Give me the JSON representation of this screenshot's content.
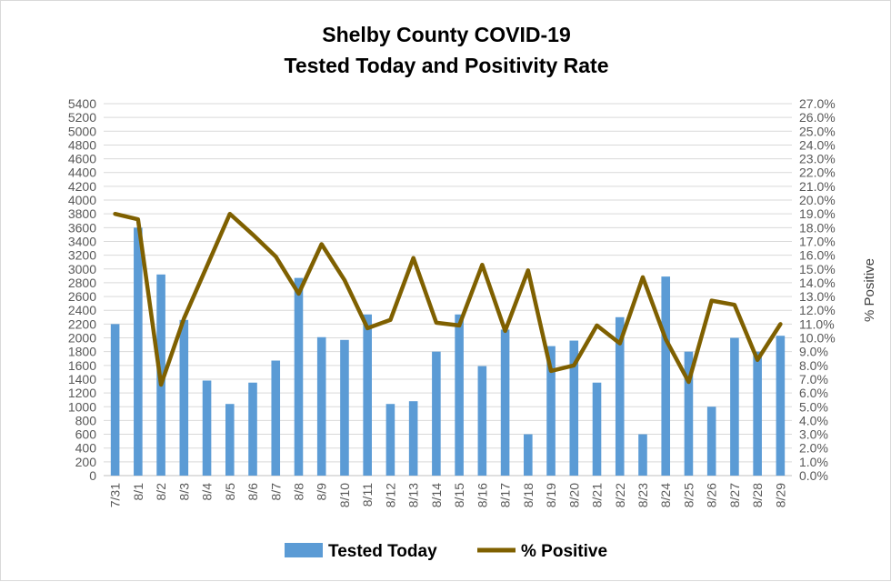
{
  "chart_data": {
    "type": "bar+line",
    "title": "Shelby County COVID-19",
    "subtitle": "Tested Today and Positivity Rate",
    "xlabel": "",
    "ylabel": "",
    "y2label": "% Positive",
    "categories": [
      "7/31",
      "8/1",
      "8/2",
      "8/3",
      "8/4",
      "8/5",
      "8/6",
      "8/7",
      "8/8",
      "8/9",
      "8/10",
      "8/11",
      "8/12",
      "8/13",
      "8/14",
      "8/15",
      "8/16",
      "8/17",
      "8/18",
      "8/19",
      "8/20",
      "8/21",
      "8/22",
      "8/23",
      "8/24",
      "8/25",
      "8/26",
      "8/27",
      "8/28",
      "8/29"
    ],
    "ylim": [
      0,
      5400
    ],
    "y_tick_step": 200,
    "y2lim": [
      0,
      27.0
    ],
    "y2_tick_step": 1.0,
    "grid": true,
    "legend_position": "bottom",
    "series": [
      {
        "name": "Tested Today",
        "kind": "bar",
        "color": "#5b9bd5",
        "values": [
          2200,
          3600,
          2920,
          2260,
          1380,
          1040,
          1350,
          1670,
          2870,
          2010,
          1970,
          2340,
          1040,
          1080,
          1800,
          2340,
          1590,
          2120,
          600,
          1880,
          1960,
          1350,
          2300,
          600,
          2890,
          1800,
          1000,
          2000,
          1800,
          2030
        ]
      },
      {
        "name": "% Positive",
        "kind": "line",
        "color": "#7f6000",
        "axis": "right",
        "values": [
          19.0,
          18.6,
          6.6,
          11.4,
          15.2,
          19.0,
          17.5,
          15.9,
          13.2,
          16.8,
          14.2,
          10.7,
          11.3,
          15.8,
          11.1,
          10.9,
          15.3,
          10.5,
          14.9,
          7.6,
          8.0,
          10.9,
          9.6,
          14.4,
          9.9,
          6.8,
          12.7,
          12.4,
          8.4,
          11.0
        ]
      }
    ]
  }
}
